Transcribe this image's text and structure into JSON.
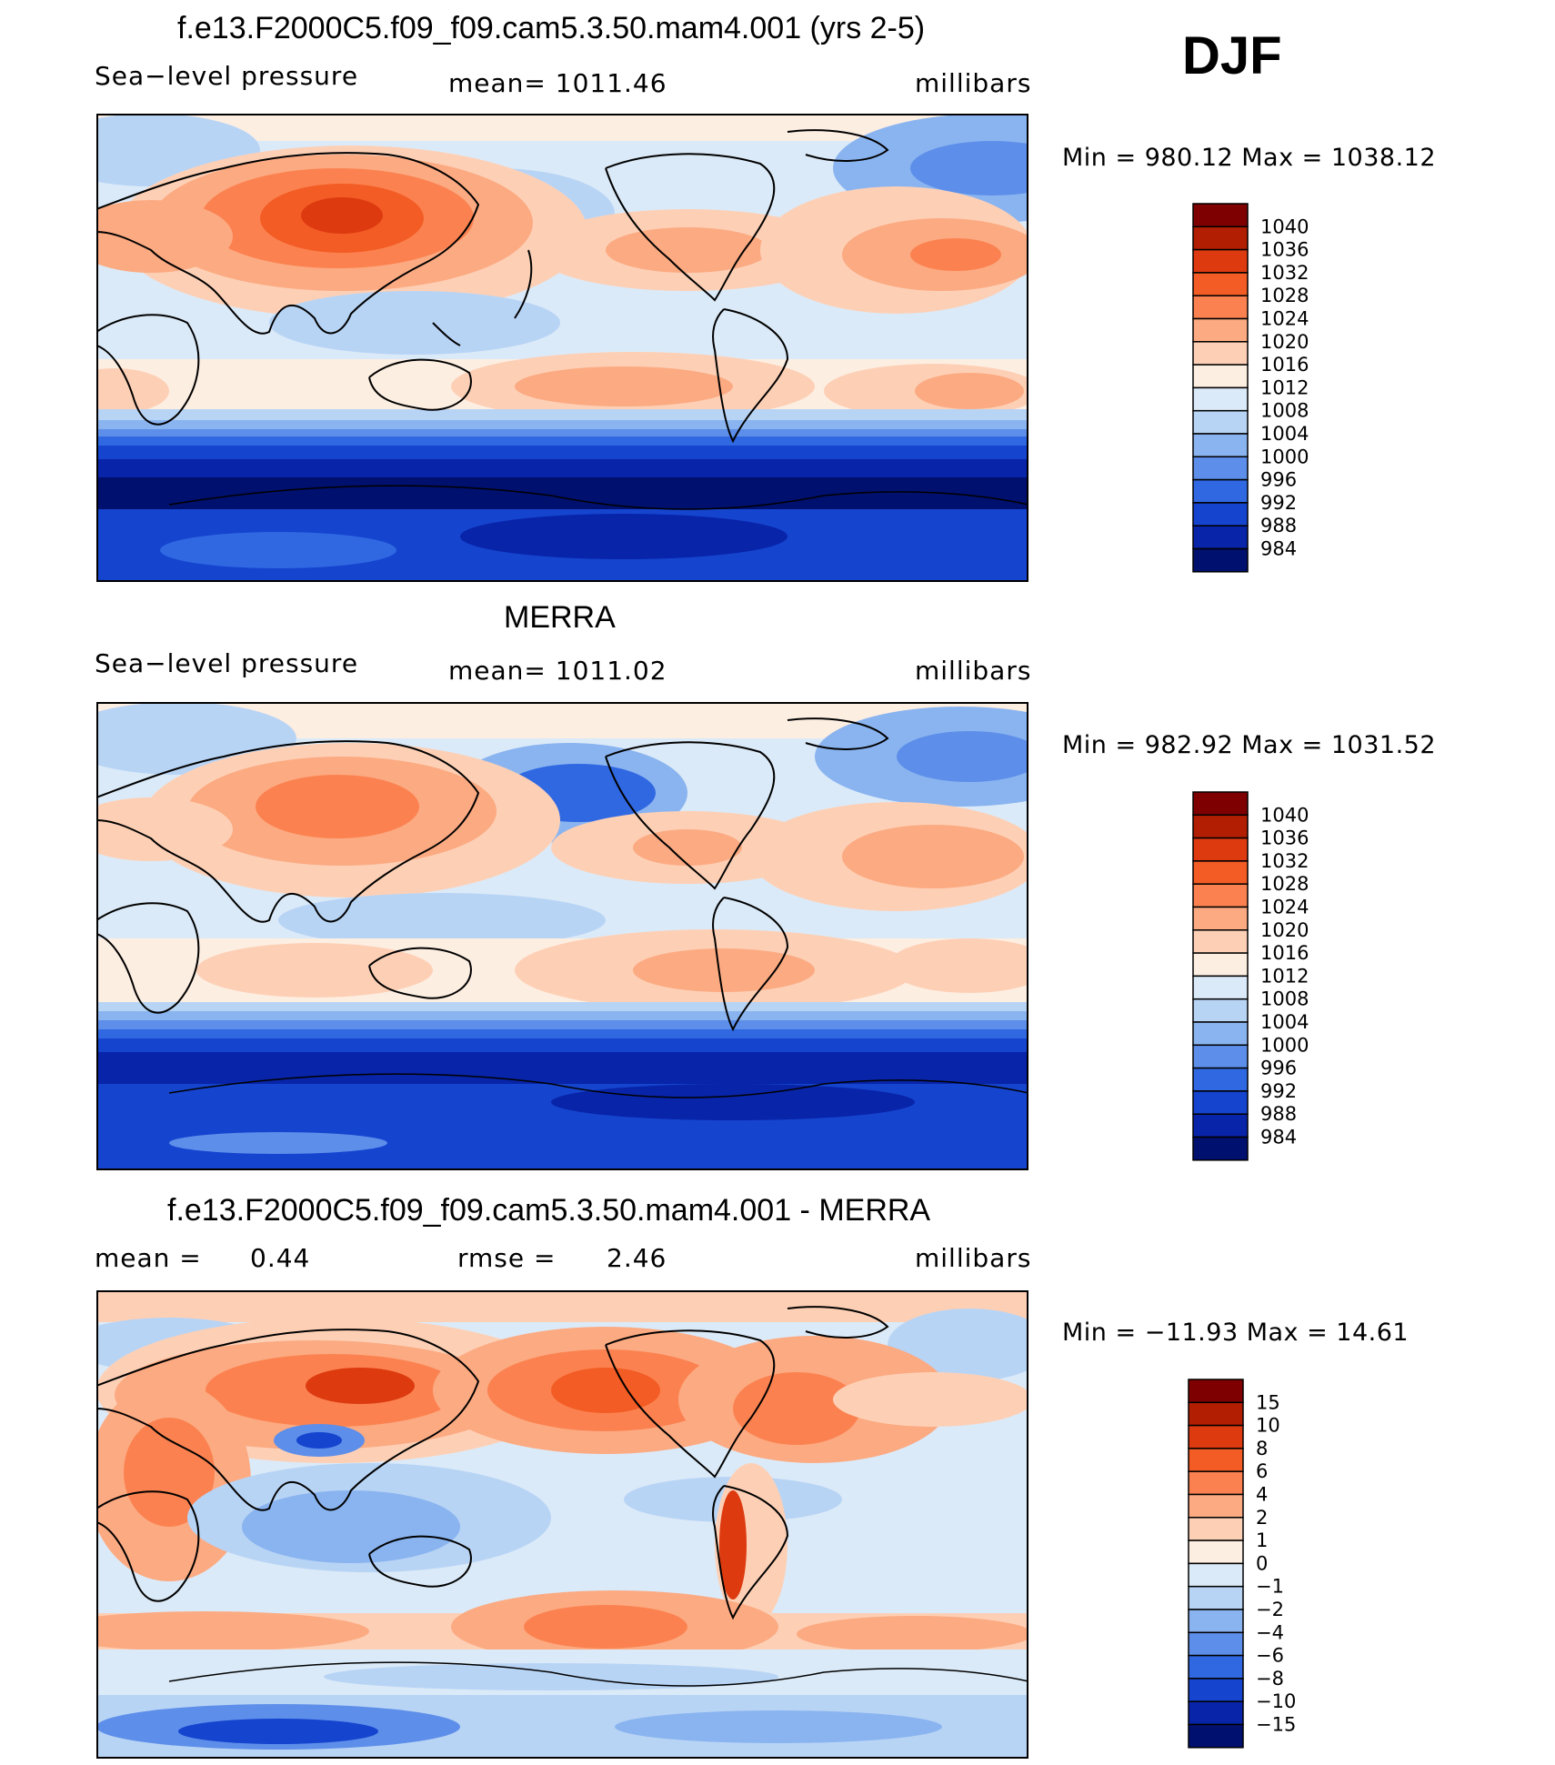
{
  "season": "DJF",
  "chart_data": [
    {
      "type": "heatmap",
      "title": "f.e13.F2000C5.f09_f09.cam5.3.50.mam4.001 (yrs 2-5)",
      "variable": "Sea−level pressure",
      "mean_text": "mean=  1011.46",
      "units": "millibars",
      "minmax_text": "Min  =  980.12  Max  =  1038.12",
      "min": 980.12,
      "max": 1038.12,
      "levels": [
        "1040",
        "1036",
        "1032",
        "1028",
        "1024",
        "1020",
        "1016",
        "1012",
        "1008",
        "1004",
        "1000",
        "996",
        "992",
        "988",
        "984"
      ],
      "colors": [
        "#7f0000",
        "#b11e02",
        "#dd3a10",
        "#f35c24",
        "#fb8250",
        "#fcaa82",
        "#fdd0b6",
        "#fdeee2",
        "#dbeaf8",
        "#b8d4f5",
        "#8ab4f0",
        "#5d8ee9",
        "#3068e2",
        "#1544cf",
        "#0824a8",
        "#00106f"
      ]
    },
    {
      "type": "heatmap",
      "title": "MERRA",
      "variable": "Sea−level pressure",
      "mean_text": "mean=  1011.02",
      "units": "millibars",
      "minmax_text": "Min  =  982.92  Max  =  1031.52",
      "min": 982.92,
      "max": 1031.52,
      "levels": [
        "1040",
        "1036",
        "1032",
        "1028",
        "1024",
        "1020",
        "1016",
        "1012",
        "1008",
        "1004",
        "1000",
        "996",
        "992",
        "988",
        "984"
      ],
      "colors": [
        "#7f0000",
        "#b11e02",
        "#dd3a10",
        "#f35c24",
        "#fb8250",
        "#fcaa82",
        "#fdd0b6",
        "#fdeee2",
        "#dbeaf8",
        "#b8d4f5",
        "#8ab4f0",
        "#5d8ee9",
        "#3068e2",
        "#1544cf",
        "#0824a8",
        "#00106f"
      ]
    },
    {
      "type": "heatmap",
      "title": "f.e13.F2000C5.f09_f09.cam5.3.50.mam4.001 - MERRA",
      "mean_label": "mean  =",
      "mean_value": "0.44",
      "rmse_label": "rmse  =",
      "rmse_value": "2.46",
      "units": "millibars",
      "minmax_text": "Min  =  −11.93  Max  =    14.61",
      "min": -11.93,
      "max": 14.61,
      "mean": 0.44,
      "rmse": 2.46,
      "levels": [
        "15",
        "10",
        "8",
        "6",
        "4",
        "2",
        "1",
        "0",
        "−1",
        "−2",
        "−4",
        "−6",
        "−8",
        "−10",
        "−15"
      ],
      "colors": [
        "#7f0000",
        "#b11e02",
        "#dd3a10",
        "#f35c24",
        "#fb8250",
        "#fcaa82",
        "#fdd0b6",
        "#fdeee2",
        "#dbeaf8",
        "#b8d4f5",
        "#8ab4f0",
        "#5d8ee9",
        "#3068e2",
        "#1544cf",
        "#0824a8",
        "#00106f"
      ]
    }
  ]
}
